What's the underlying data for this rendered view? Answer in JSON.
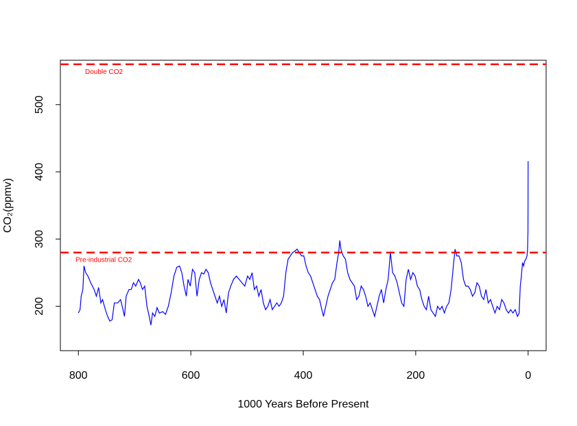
{
  "chart_data": {
    "type": "line",
    "x_label": "1000 Years Before Present",
    "y_label": "CO₂(ppmv)",
    "xlim": [
      832,
      -32
    ],
    "ylim": [
      134,
      566
    ],
    "xticks": [
      800,
      600,
      400,
      200,
      0
    ],
    "yticks": [
      200,
      300,
      400,
      500
    ],
    "grid": false,
    "x": [
      800,
      797,
      795,
      792,
      790,
      787,
      783,
      778,
      772,
      768,
      764,
      760,
      757,
      752,
      748,
      744,
      740,
      736,
      730,
      725,
      722,
      718,
      715,
      710,
      706,
      702,
      698,
      693,
      690,
      686,
      682,
      678,
      674,
      671,
      668,
      664,
      660,
      656,
      650,
      645,
      640,
      635,
      630,
      625,
      620,
      616,
      612,
      608,
      605,
      601,
      597,
      593,
      589,
      585,
      581,
      577,
      573,
      569,
      565,
      561,
      557,
      553,
      549,
      545,
      541,
      537,
      533,
      529,
      524,
      519,
      514,
      509,
      504,
      499,
      495,
      491,
      487,
      483,
      479,
      475,
      471,
      467,
      463,
      459,
      455,
      451,
      447,
      443,
      439,
      435,
      431,
      427,
      423,
      419,
      415,
      411,
      407,
      403,
      399,
      395,
      391,
      387,
      383,
      379,
      375,
      371,
      367,
      364,
      360,
      356,
      352,
      348,
      344,
      340,
      337,
      335,
      333,
      329,
      325,
      321,
      317,
      313,
      309,
      305,
      301,
      297,
      293,
      289,
      285,
      281,
      277,
      273,
      269,
      265,
      261,
      257,
      253,
      249,
      245,
      241,
      237,
      233,
      229,
      225,
      221,
      217,
      213,
      209,
      205,
      201,
      197,
      193,
      189,
      185,
      181,
      177,
      173,
      169,
      165,
      161,
      157,
      153,
      149,
      145,
      141,
      137,
      133,
      130,
      127,
      123,
      119,
      115,
      111,
      107,
      103,
      99,
      95,
      91,
      87,
      83,
      79,
      75,
      71,
      67,
      63,
      59,
      55,
      51,
      47,
      43,
      39,
      35,
      31,
      27,
      23,
      19,
      16,
      14,
      12,
      10,
      8,
      6,
      4,
      2,
      1,
      0.3,
      0
    ],
    "series": [
      {
        "name": "CO2",
        "color": "#0000ff",
        "values": [
          190,
          195,
          215,
          225,
          260,
          250,
          245,
          235,
          225,
          215,
          228,
          205,
          210,
          195,
          185,
          178,
          180,
          205,
          205,
          210,
          200,
          185,
          215,
          225,
          225,
          235,
          230,
          240,
          235,
          225,
          230,
          200,
          185,
          172,
          190,
          185,
          198,
          190,
          192,
          188,
          200,
          220,
          245,
          258,
          260,
          250,
          230,
          215,
          240,
          230,
          255,
          250,
          215,
          240,
          250,
          248,
          255,
          250,
          235,
          225,
          215,
          205,
          215,
          200,
          210,
          190,
          220,
          230,
          240,
          245,
          240,
          235,
          230,
          245,
          240,
          250,
          225,
          230,
          215,
          225,
          205,
          195,
          200,
          210,
          195,
          200,
          205,
          200,
          205,
          215,
          250,
          270,
          275,
          280,
          282,
          285,
          280,
          275,
          275,
          260,
          250,
          245,
          235,
          225,
          215,
          210,
          195,
          185,
          200,
          215,
          225,
          235,
          240,
          265,
          280,
          298,
          285,
          275,
          270,
          250,
          240,
          235,
          230,
          210,
          215,
          230,
          225,
          215,
          200,
          205,
          195,
          185,
          200,
          215,
          225,
          205,
          225,
          240,
          280,
          250,
          245,
          235,
          220,
          205,
          200,
          240,
          255,
          240,
          250,
          245,
          230,
          225,
          210,
          200,
          195,
          215,
          195,
          190,
          185,
          200,
          195,
          200,
          190,
          200,
          205,
          225,
          260,
          285,
          275,
          275,
          265,
          240,
          230,
          230,
          225,
          215,
          220,
          235,
          230,
          215,
          210,
          225,
          205,
          210,
          200,
          190,
          200,
          195,
          210,
          205,
          195,
          190,
          195,
          190,
          195,
          185,
          190,
          230,
          245,
          265,
          260,
          268,
          270,
          275,
          285,
          310,
          416
        ]
      }
    ],
    "hlines": [
      {
        "value": 560,
        "label": "Double CO2",
        "color": "#ff0000"
      },
      {
        "value": 280,
        "label": "Pre-industrial CO2",
        "color": "#ff0000"
      }
    ]
  }
}
